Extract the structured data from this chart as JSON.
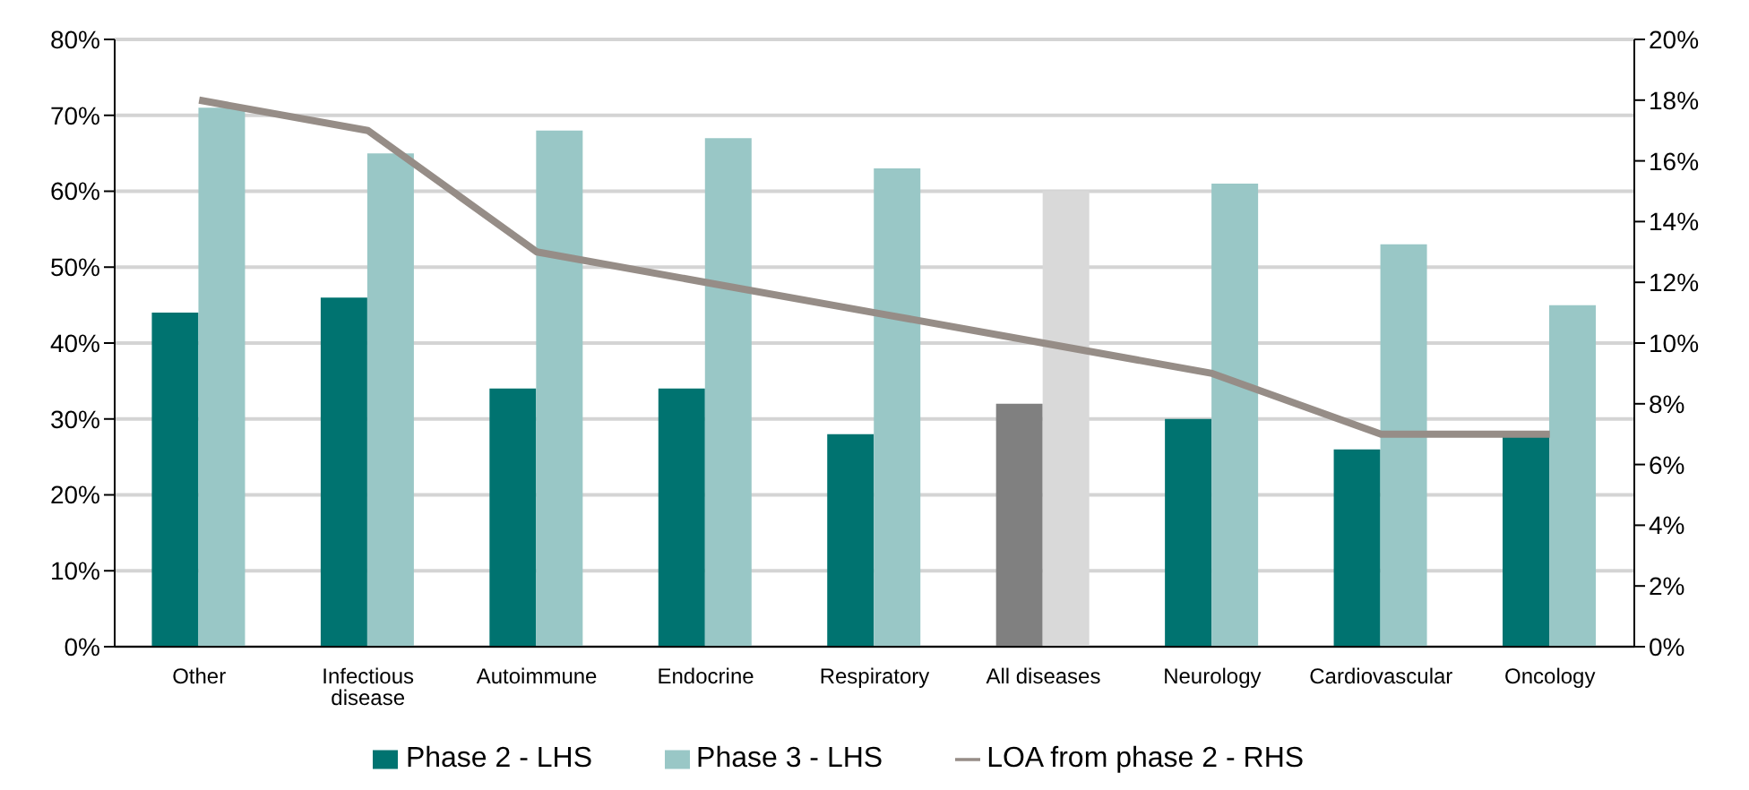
{
  "chart_data": {
    "type": "bar",
    "categories": [
      "Other",
      "Infectious disease",
      "Autoimmune",
      "Endocrine",
      "Respiratory",
      "All diseases",
      "Neurology",
      "Cardiovascular",
      "Oncology"
    ],
    "series": [
      {
        "name": "Phase 2 - LHS",
        "color": "#007370",
        "colors": [
          "#007370",
          "#007370",
          "#007370",
          "#007370",
          "#007370",
          "#808080",
          "#007370",
          "#007370",
          "#007370"
        ],
        "values": [
          44,
          46,
          34,
          34,
          28,
          32,
          30,
          26,
          28
        ]
      },
      {
        "name": "Phase 3 - LHS",
        "color": "#99c7c6",
        "colors": [
          "#99c7c6",
          "#99c7c6",
          "#99c7c6",
          "#99c7c6",
          "#99c7c6",
          "#d9d9d9",
          "#99c7c6",
          "#99c7c6",
          "#99c7c6"
        ],
        "values": [
          71,
          65,
          68,
          67,
          63,
          60,
          61,
          53,
          45
        ]
      },
      {
        "name": "LOA from phase 2 - RHS",
        "type": "line",
        "axis": "y2",
        "color": "#968d87",
        "values": [
          18,
          17,
          13,
          12,
          11,
          10,
          9,
          7,
          7
        ]
      }
    ],
    "ylim": [
      0,
      80
    ],
    "yticks": [
      {
        "value": 0,
        "label": "0%"
      },
      {
        "value": 10,
        "label": "10%"
      },
      {
        "value": 20,
        "label": "20%"
      },
      {
        "value": 30,
        "label": "30%"
      },
      {
        "value": 40,
        "label": "40%"
      },
      {
        "value": 50,
        "label": "50%"
      },
      {
        "value": 60,
        "label": "60%"
      },
      {
        "value": 70,
        "label": "70%"
      },
      {
        "value": 80,
        "label": "80%"
      }
    ],
    "y2lim": [
      0,
      20
    ],
    "y2ticks": [
      {
        "value": 0,
        "label": "0%"
      },
      {
        "value": 2,
        "label": "2%"
      },
      {
        "value": 4,
        "label": "4%"
      },
      {
        "value": 6,
        "label": "6%"
      },
      {
        "value": 8,
        "label": "8%"
      },
      {
        "value": 10,
        "label": "10%"
      },
      {
        "value": 12,
        "label": "12%"
      },
      {
        "value": 14,
        "label": "14%"
      },
      {
        "value": 16,
        "label": "16%"
      },
      {
        "value": 18,
        "label": "18%"
      },
      {
        "value": 20,
        "label": "20%"
      }
    ],
    "legend": "bottom",
    "marker": "none",
    "grid": "y"
  }
}
